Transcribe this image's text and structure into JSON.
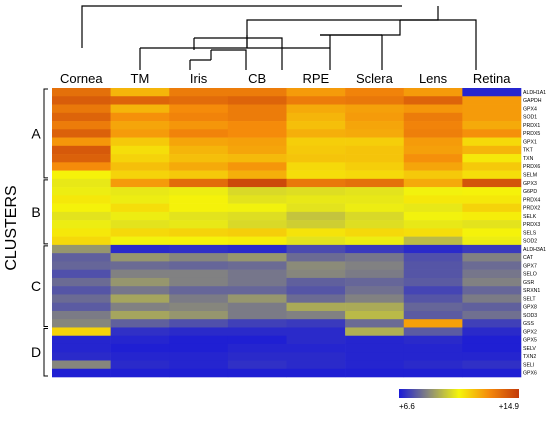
{
  "chart_data": {
    "type": "heatmap",
    "y_axis_title": "CLUSTERS",
    "columns": [
      "Cornea",
      "TM",
      "Iris",
      "CB",
      "RPE",
      "Sclera",
      "Lens",
      "Retina"
    ],
    "rows": [
      "ALDH1A1",
      "GAPDH",
      "GPX4",
      "SOD1",
      "PRDX1",
      "PRDX5",
      "GPX1",
      "TKT",
      "TXN",
      "PRDX6",
      "SELM",
      "GPX3",
      "G6PD",
      "PRDX4",
      "PRDX2",
      "SELK",
      "PRDX3",
      "SELS",
      "SOD2",
      "ALDH3A1",
      "CAT",
      "GPX7",
      "SELO",
      "GSR",
      "SRXN1",
      "SELT",
      "GPX8",
      "SOD3",
      "GSS",
      "GPX2",
      "GPX5",
      "SELV",
      "TXN2",
      "SELI",
      "GPX6"
    ],
    "clusters": [
      {
        "label": "A",
        "first_row": "ALDH1A1",
        "last_row": "SELM"
      },
      {
        "label": "B",
        "first_row": "GPX3",
        "last_row": "SOD2"
      },
      {
        "label": "C",
        "first_row": "ALDH3A1",
        "last_row": "GSS"
      },
      {
        "label": "D",
        "first_row": "GPX2",
        "last_row": "GPX6"
      }
    ],
    "values": [
      [
        13.5,
        12.0,
        13.2,
        13.2,
        12.5,
        13.0,
        12.5,
        6.8
      ],
      [
        14.0,
        13.8,
        13.6,
        13.8,
        13.2,
        13.3,
        13.8,
        12.5
      ],
      [
        13.3,
        12.0,
        12.8,
        13.2,
        12.2,
        12.4,
        12.6,
        12.5
      ],
      [
        13.8,
        12.7,
        13.0,
        13.2,
        12.0,
        12.5,
        13.2,
        12.5
      ],
      [
        13.2,
        12.3,
        12.6,
        12.8,
        11.8,
        12.3,
        13.0,
        12.2
      ],
      [
        13.9,
        12.5,
        13.0,
        12.8,
        12.1,
        12.2,
        13.1,
        12.7
      ],
      [
        12.6,
        11.6,
        12.3,
        12.4,
        11.5,
        11.5,
        12.5,
        11.3
      ],
      [
        14.1,
        11.2,
        12.0,
        12.3,
        11.6,
        11.7,
        12.4,
        12.0
      ],
      [
        13.9,
        11.4,
        11.8,
        11.9,
        11.7,
        11.7,
        12.7,
        11.0
      ],
      [
        12.8,
        11.8,
        12.2,
        12.6,
        11.3,
        11.5,
        12.3,
        11.6
      ],
      [
        10.8,
        11.4,
        11.6,
        12.1,
        11.2,
        11.3,
        11.6,
        11.2
      ],
      [
        10.5,
        12.5,
        13.6,
        14.5,
        13.3,
        13.5,
        12.2,
        14.2
      ],
      [
        10.6,
        10.5,
        10.6,
        10.2,
        10.3,
        10.4,
        10.7,
        10.8
      ],
      [
        11.0,
        10.6,
        10.8,
        10.4,
        10.5,
        10.5,
        11.0,
        11.0
      ],
      [
        10.8,
        11.2,
        10.8,
        10.7,
        10.4,
        10.6,
        10.5,
        11.4
      ],
      [
        10.4,
        10.6,
        10.4,
        10.3,
        9.8,
        10.2,
        10.7,
        10.9
      ],
      [
        10.6,
        10.4,
        10.5,
        10.2,
        10.0,
        10.3,
        10.5,
        10.4
      ],
      [
        11.0,
        11.3,
        11.4,
        11.5,
        11.1,
        11.3,
        11.2,
        10.8
      ],
      [
        11.3,
        10.7,
        10.8,
        10.9,
        10.4,
        10.6,
        9.6,
        10.6
      ],
      [
        8.9,
        6.9,
        7.0,
        6.9,
        7.5,
        7.2,
        6.9,
        7.2
      ],
      [
        7.9,
        8.9,
        8.6,
        8.9,
        8.1,
        8.3,
        7.6,
        8.5
      ],
      [
        8.0,
        8.1,
        8.0,
        8.1,
        8.7,
        8.5,
        7.7,
        8.1
      ],
      [
        7.6,
        8.5,
        8.5,
        8.3,
        8.6,
        8.4,
        7.7,
        8.3
      ],
      [
        8.1,
        8.9,
        8.5,
        8.3,
        7.9,
        8.0,
        7.8,
        8.5
      ],
      [
        7.7,
        8.3,
        8.0,
        8.0,
        7.7,
        8.2,
        7.4,
        8.0
      ],
      [
        8.1,
        9.2,
        8.4,
        8.9,
        8.1,
        8.5,
        7.7,
        8.4
      ],
      [
        7.8,
        8.5,
        8.6,
        8.4,
        9.3,
        9.3,
        8.0,
        7.9
      ],
      [
        8.4,
        9.2,
        8.9,
        8.4,
        8.5,
        9.6,
        7.8,
        8.2
      ],
      [
        8.6,
        7.9,
        7.6,
        7.3,
        7.2,
        8.1,
        12.4,
        7.3
      ],
      [
        11.4,
        7.0,
        6.9,
        6.9,
        6.9,
        9.4,
        7.8,
        6.9
      ],
      [
        6.8,
        6.8,
        6.7,
        6.7,
        6.9,
        6.8,
        6.9,
        6.7
      ],
      [
        6.8,
        6.7,
        6.7,
        6.8,
        6.8,
        6.8,
        6.8,
        6.7
      ],
      [
        6.9,
        6.8,
        6.8,
        6.9,
        6.9,
        6.8,
        6.8,
        6.8
      ],
      [
        8.6,
        6.9,
        6.8,
        7.0,
        6.9,
        6.8,
        6.9,
        7.0
      ],
      [
        6.7,
        6.7,
        6.7,
        6.7,
        6.7,
        6.7,
        6.7,
        6.7
      ]
    ],
    "color_scale": {
      "min": 6.6,
      "max": 14.9,
      "min_label": "+6.6",
      "max_label": "+14.9",
      "colors": [
        "#1a1ad8",
        "#8a8a7a",
        "#f5f50a",
        "#f58a0a",
        "#c23a0a"
      ]
    }
  }
}
